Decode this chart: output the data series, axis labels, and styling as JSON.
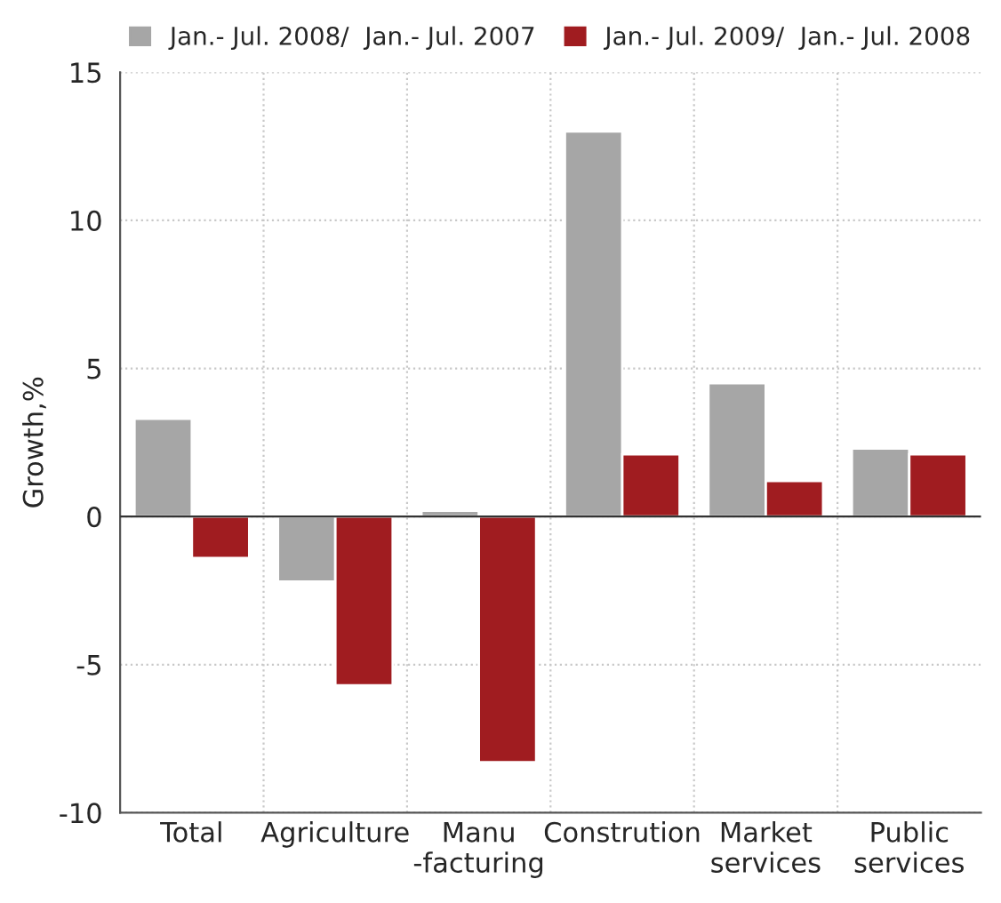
{
  "chart_data": {
    "type": "bar",
    "ylabel": "Growth,%",
    "categories": [
      "Total",
      "Agriculture",
      "Manu\n-facturing",
      "Constrution",
      "Market\nservices",
      "Public\nservices"
    ],
    "series": [
      {
        "name": "Jan.- Jul. 2008/  Jan.- Jul. 2007",
        "color": "#a6a6a6",
        "values": [
          3.3,
          -2.2,
          0.2,
          13.0,
          4.5,
          2.3
        ]
      },
      {
        "name": "Jan.- Jul. 2009/  Jan.- Jul. 2008",
        "color": "#a01c20",
        "values": [
          -1.4,
          -5.7,
          -8.3,
          2.1,
          1.2,
          2.1
        ]
      }
    ],
    "ylim": [
      -10,
      15
    ],
    "yticks": [
      -10,
      -5,
      0,
      5,
      10,
      15
    ],
    "grid": true,
    "legend": "top"
  }
}
